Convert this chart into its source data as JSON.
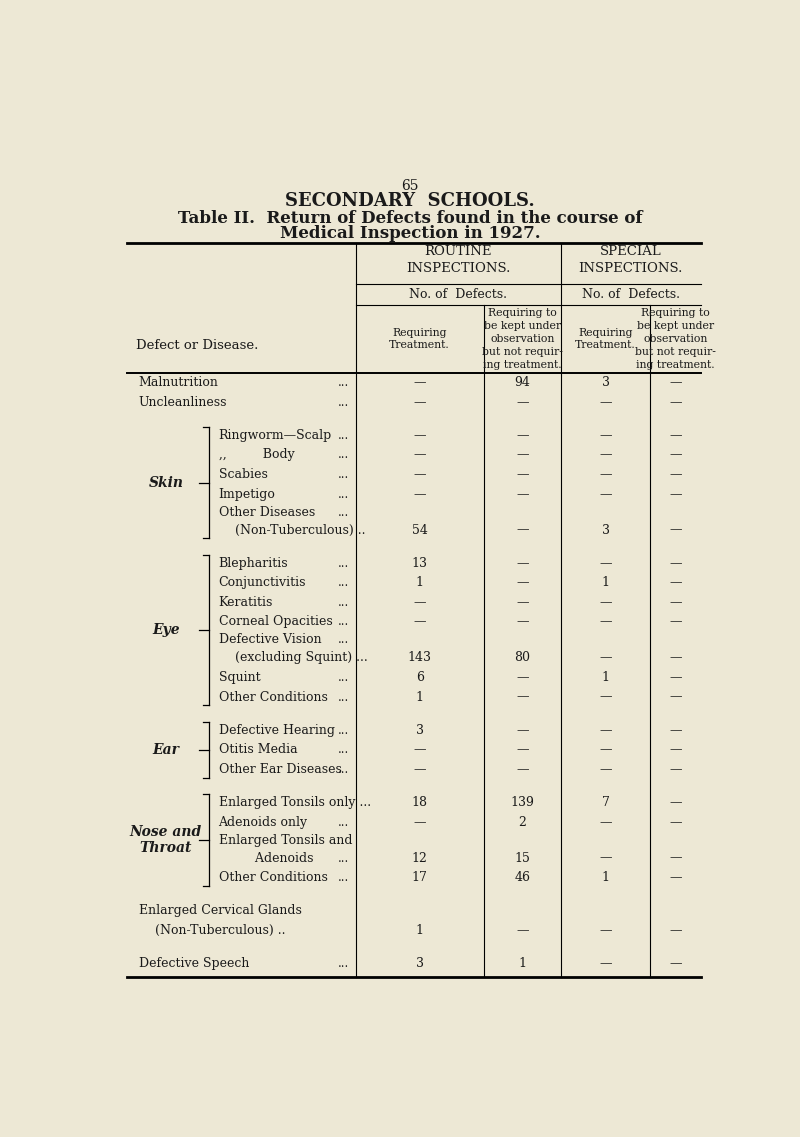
{
  "page_number": "65",
  "main_title": "SECONDARY  SCHOOLS.",
  "subtitle_line1": "Table II.  Return of Defects found in the course of",
  "subtitle_line2": "Medical Inspection in 1927.",
  "bg_color": "#ede8d5",
  "rows": [
    {
      "category": "Malnutrition",
      "dots": true,
      "indent": 0,
      "group": null,
      "brace_start": false,
      "brace_end": false,
      "rt": "—",
      "ro": "94",
      "st": "3",
      "so": "—",
      "spacer": false
    },
    {
      "category": "Uncleanliness",
      "dots": true,
      "indent": 0,
      "group": null,
      "brace_start": false,
      "brace_end": false,
      "rt": "—",
      "ro": "—",
      "st": "—",
      "so": "—",
      "spacer": false
    },
    {
      "spacer": true
    },
    {
      "category": "Ringworm—Scalp",
      "dots": true,
      "indent": 1,
      "group": "Skin",
      "brace_start": true,
      "brace_end": false,
      "rt": "—",
      "ro": "—",
      "st": "—",
      "so": "—",
      "spacer": false
    },
    {
      "category": ",,         Body",
      "dots": true,
      "indent": 1,
      "group": null,
      "brace_start": false,
      "brace_end": false,
      "rt": "—",
      "ro": "—",
      "st": "—",
      "so": "—",
      "spacer": false
    },
    {
      "category": "Scabies",
      "dots": true,
      "indent": 1,
      "group": null,
      "brace_start": false,
      "brace_end": false,
      "rt": "—",
      "ro": "—",
      "st": "—",
      "so": "—",
      "spacer": false
    },
    {
      "category": "Impetigo",
      "dots": true,
      "indent": 1,
      "group": null,
      "brace_start": false,
      "brace_end": false,
      "rt": "—",
      "ro": "—",
      "st": "—",
      "so": "—",
      "spacer": false
    },
    {
      "category": "Other Diseases",
      "dots": true,
      "indent": 1,
      "group": null,
      "brace_start": false,
      "brace_end": false,
      "rt": "",
      "ro": "",
      "st": "",
      "so": "",
      "spacer": false
    },
    {
      "category": "    (Non-Tuberculous) ..",
      "dots": false,
      "indent": 1,
      "group": null,
      "brace_start": false,
      "brace_end": true,
      "rt": "54",
      "ro": "—",
      "st": "3",
      "so": "—",
      "spacer": false
    },
    {
      "spacer": true
    },
    {
      "category": "Blepharitis",
      "dots": true,
      "indent": 1,
      "group": "Eye",
      "brace_start": true,
      "brace_end": false,
      "rt": "13",
      "ro": "—",
      "st": "—",
      "so": "—",
      "spacer": false
    },
    {
      "category": "Conjunctivitis",
      "dots": true,
      "indent": 1,
      "group": null,
      "brace_start": false,
      "brace_end": false,
      "rt": "1",
      "ro": "—",
      "st": "1",
      "so": "—",
      "spacer": false
    },
    {
      "category": "Keratitis",
      "dots": true,
      "indent": 1,
      "group": null,
      "brace_start": false,
      "brace_end": false,
      "rt": "—",
      "ro": "—",
      "st": "—",
      "so": "—",
      "spacer": false
    },
    {
      "category": "Corneal Opacities",
      "dots": true,
      "indent": 1,
      "group": null,
      "brace_start": false,
      "brace_end": false,
      "rt": "—",
      "ro": "—",
      "st": "—",
      "so": "—",
      "spacer": false
    },
    {
      "category": "Defective Vision",
      "dots": true,
      "indent": 1,
      "group": null,
      "brace_start": false,
      "brace_end": false,
      "rt": "",
      "ro": "",
      "st": "",
      "so": "",
      "spacer": false
    },
    {
      "category": "    (excluding Squint) ...",
      "dots": false,
      "indent": 1,
      "group": null,
      "brace_start": false,
      "brace_end": false,
      "rt": "143",
      "ro": "80",
      "st": "—",
      "so": "—",
      "spacer": false
    },
    {
      "category": "Squint",
      "dots": true,
      "indent": 1,
      "group": null,
      "brace_start": false,
      "brace_end": false,
      "rt": "6",
      "ro": "—",
      "st": "1",
      "so": "—",
      "spacer": false
    },
    {
      "category": "Other Conditions",
      "dots": true,
      "indent": 1,
      "group": null,
      "brace_start": false,
      "brace_end": true,
      "rt": "1",
      "ro": "—",
      "st": "—",
      "so": "—",
      "spacer": false
    },
    {
      "spacer": true
    },
    {
      "category": "Defective Hearing",
      "dots": true,
      "indent": 1,
      "group": "Ear",
      "brace_start": true,
      "brace_end": false,
      "rt": "3",
      "ro": "—",
      "st": "—",
      "so": "—",
      "spacer": false
    },
    {
      "category": "Otitis Media",
      "dots": true,
      "indent": 1,
      "group": null,
      "brace_start": false,
      "brace_end": false,
      "rt": "—",
      "ro": "—",
      "st": "—",
      "so": "—",
      "spacer": false
    },
    {
      "category": "Other Ear Diseases",
      "dots": true,
      "indent": 1,
      "group": null,
      "brace_start": false,
      "brace_end": true,
      "rt": "—",
      "ro": "—",
      "st": "—",
      "so": "—",
      "spacer": false
    },
    {
      "spacer": true
    },
    {
      "category": "Enlarged Tonsils only ...",
      "dots": false,
      "indent": 1,
      "group": "Nose and\nThroat",
      "brace_start": true,
      "brace_end": false,
      "rt": "18",
      "ro": "139",
      "st": "7",
      "so": "—",
      "spacer": false
    },
    {
      "category": "Adenoids only",
      "dots": true,
      "indent": 1,
      "group": null,
      "brace_start": false,
      "brace_end": false,
      "rt": "—",
      "ro": "2",
      "st": "—",
      "so": "—",
      "spacer": false
    },
    {
      "category": "Enlarged Tonsils and",
      "dots": false,
      "indent": 1,
      "group": null,
      "brace_start": false,
      "brace_end": false,
      "rt": "",
      "ro": "",
      "st": "",
      "so": "",
      "spacer": false
    },
    {
      "category": "         Adenoids",
      "dots": true,
      "indent": 1,
      "group": null,
      "brace_start": false,
      "brace_end": false,
      "rt": "12",
      "ro": "15",
      "st": "—",
      "so": "—",
      "spacer": false
    },
    {
      "category": "Other Conditions",
      "dots": true,
      "indent": 1,
      "group": null,
      "brace_start": false,
      "brace_end": true,
      "rt": "17",
      "ro": "46",
      "st": "1",
      "so": "—",
      "spacer": false
    },
    {
      "spacer": true
    },
    {
      "category": "Enlarged Cervical Glands",
      "dots": false,
      "indent": 0,
      "group": null,
      "brace_start": false,
      "brace_end": false,
      "rt": "",
      "ro": "",
      "st": "",
      "so": "",
      "spacer": false
    },
    {
      "category": "    (Non-Tuberculous) ..",
      "dots": false,
      "indent": 0,
      "group": null,
      "brace_start": false,
      "brace_end": false,
      "rt": "1",
      "ro": "—",
      "st": "—",
      "so": "—",
      "spacer": false
    },
    {
      "spacer": true
    },
    {
      "category": "Defective Speech",
      "dots": true,
      "indent": 0,
      "group": null,
      "brace_start": false,
      "brace_end": false,
      "rt": "3",
      "ro": "1",
      "st": "—",
      "so": "—",
      "spacer": false
    }
  ]
}
